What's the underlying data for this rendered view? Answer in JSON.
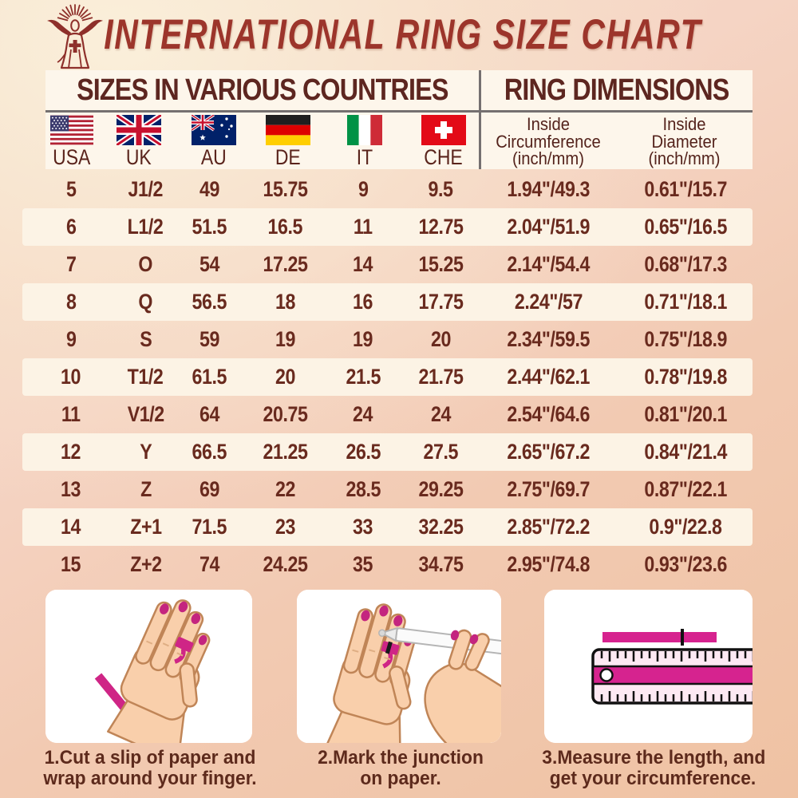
{
  "title": "INTERNATIONAL RING SIZE CHART",
  "table": {
    "section_left": "SIZES IN VARIOUS COUNTRIES",
    "section_right": "RING DIMENSIONS",
    "countries": [
      {
        "code": "USA"
      },
      {
        "code": "UK"
      },
      {
        "code": "AU"
      },
      {
        "code": "DE"
      },
      {
        "code": "IT"
      },
      {
        "code": "CHE"
      }
    ],
    "dim_headers": [
      {
        "lines": [
          "Inside",
          "Circumference",
          "(inch/mm)"
        ]
      },
      {
        "lines": [
          "Inside",
          "Diameter",
          "(inch/mm)"
        ]
      }
    ]
  },
  "steps": [
    {
      "lines": [
        "1.Cut a slip of paper and",
        "wrap around your finger."
      ]
    },
    {
      "lines": [
        "2.Mark the junction",
        "on paper."
      ]
    },
    {
      "lines": [
        "3.Measure the length, and",
        "get your circumference."
      ]
    }
  ],
  "colors": {
    "title_red": "#9c352b",
    "text_maroon": "#5d2a1c",
    "cell_maroon": "#692a1e",
    "panel_cream": "#fdf6eb",
    "strip_cream": "#fcf3e5",
    "divider_gray": "#757070",
    "accent_magenta": "#cf2586"
  },
  "chart_data": {
    "type": "table",
    "title": "INTERNATIONAL RING SIZE CHART",
    "columns": [
      "USA",
      "UK",
      "AU",
      "DE",
      "IT",
      "CHE",
      "Inside Circumference (inch/mm)",
      "Inside Diameter (inch/mm)"
    ],
    "rows": [
      [
        "5",
        "J1/2",
        "49",
        "15.75",
        "9",
        "9.5",
        "1.94\"/49.3",
        "0.61\"/15.7"
      ],
      [
        "6",
        "L1/2",
        "51.5",
        "16.5",
        "11",
        "12.75",
        "2.04\"/51.9",
        "0.65\"/16.5"
      ],
      [
        "7",
        "O",
        "54",
        "17.25",
        "14",
        "15.25",
        "2.14\"/54.4",
        "0.68\"/17.3"
      ],
      [
        "8",
        "Q",
        "56.5",
        "18",
        "16",
        "17.75",
        "2.24\"/57",
        "0.71\"/18.1"
      ],
      [
        "9",
        "S",
        "59",
        "19",
        "19",
        "20",
        "2.34\"/59.5",
        "0.75\"/18.9"
      ],
      [
        "10",
        "T1/2",
        "61.5",
        "20",
        "21.5",
        "21.75",
        "2.44\"/62.1",
        "0.78\"/19.8"
      ],
      [
        "11",
        "V1/2",
        "64",
        "20.75",
        "24",
        "24",
        "2.54\"/64.6",
        "0.81\"/20.1"
      ],
      [
        "12",
        "Y",
        "66.5",
        "21.25",
        "26.5",
        "27.5",
        "2.65\"/67.2",
        "0.84\"/21.4"
      ],
      [
        "13",
        "Z",
        "69",
        "22",
        "28.5",
        "29.25",
        "2.75\"/69.7",
        "0.87\"/22.1"
      ],
      [
        "14",
        "Z+1",
        "71.5",
        "23",
        "33",
        "32.25",
        "2.85\"/72.2",
        "0.9\"/22.8"
      ],
      [
        "15",
        "Z+2",
        "74",
        "24.25",
        "35",
        "34.75",
        "2.95\"/74.8",
        "0.93\"/23.6"
      ]
    ]
  }
}
